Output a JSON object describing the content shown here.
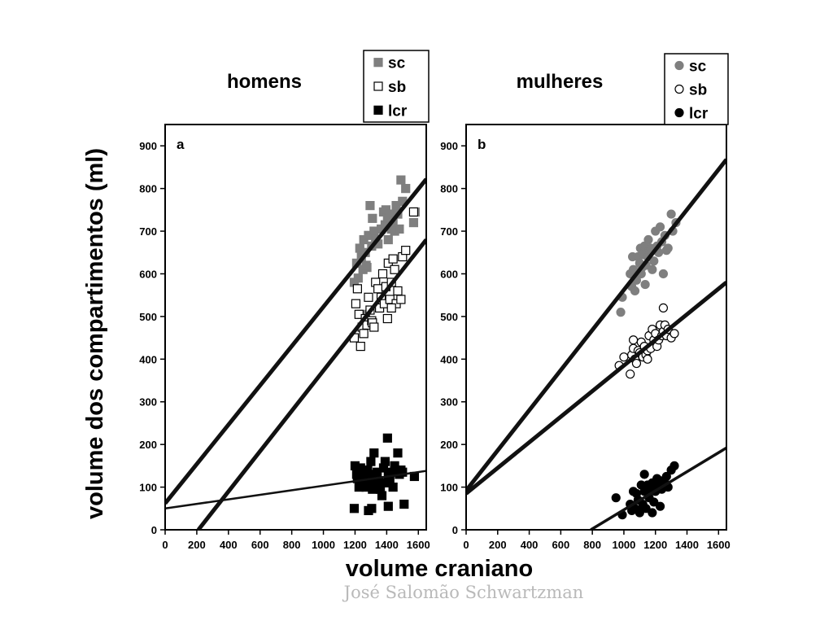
{
  "slide": {
    "ylabel": "volume dos compartimentos (ml)",
    "xlabel": "volume craniano",
    "credit": "José Salomão Schwartzman"
  },
  "chart_data": [
    {
      "type": "scatter",
      "title": "homens",
      "panel_label": "a",
      "marker": "square",
      "xlim": [
        0,
        1650
      ],
      "ylim": [
        0,
        950
      ],
      "xticks": [
        "0",
        "200",
        "400",
        "600",
        "800",
        "1000",
        "1200",
        "1400",
        "1600"
      ],
      "yticks": [
        "0",
        "100",
        "200",
        "300",
        "400",
        "500",
        "600",
        "700",
        "800",
        "900"
      ],
      "legend": {
        "placement": "top-right",
        "entries": [
          "sc",
          "sb",
          "lcr"
        ]
      },
      "series": [
        {
          "name": "sc",
          "color": "#7f7f7f",
          "fill": "gray",
          "points": [
            [
              1195,
              580
            ],
            [
              1210,
              625
            ],
            [
              1220,
              590
            ],
            [
              1230,
              660
            ],
            [
              1240,
              640
            ],
            [
              1250,
              610
            ],
            [
              1255,
              680
            ],
            [
              1265,
              650
            ],
            [
              1275,
              615
            ],
            [
              1285,
              690
            ],
            [
              1295,
              760
            ],
            [
              1305,
              665
            ],
            [
              1310,
              730
            ],
            [
              1320,
              700
            ],
            [
              1330,
              680
            ],
            [
              1345,
              670
            ],
            [
              1365,
              705
            ],
            [
              1380,
              745
            ],
            [
              1390,
              715
            ],
            [
              1395,
              750
            ],
            [
              1405,
              730
            ],
            [
              1410,
              680
            ],
            [
              1420,
              740
            ],
            [
              1430,
              705
            ],
            [
              1440,
              725
            ],
            [
              1450,
              700
            ],
            [
              1460,
              760
            ],
            [
              1470,
              740
            ],
            [
              1480,
              705
            ],
            [
              1490,
              820
            ],
            [
              1500,
              770
            ],
            [
              1520,
              800
            ],
            [
              1570,
              720
            ],
            [
              1580,
              745
            ],
            [
              1240,
              505
            ],
            [
              1270,
              620
            ]
          ]
        },
        {
          "name": "sb",
          "color": "#000000",
          "fill": "open",
          "points": [
            [
              1195,
              450
            ],
            [
              1205,
              530
            ],
            [
              1215,
              565
            ],
            [
              1225,
              505
            ],
            [
              1235,
              430
            ],
            [
              1245,
              475
            ],
            [
              1255,
              460
            ],
            [
              1265,
              495
            ],
            [
              1275,
              480
            ],
            [
              1285,
              545
            ],
            [
              1295,
              515
            ],
            [
              1305,
              490
            ],
            [
              1310,
              485
            ],
            [
              1320,
              475
            ],
            [
              1330,
              580
            ],
            [
              1345,
              565
            ],
            [
              1355,
              520
            ],
            [
              1365,
              545
            ],
            [
              1375,
              600
            ],
            [
              1385,
              530
            ],
            [
              1395,
              570
            ],
            [
              1405,
              495
            ],
            [
              1410,
              625
            ],
            [
              1420,
              540
            ],
            [
              1430,
              580
            ],
            [
              1440,
              635
            ],
            [
              1450,
              610
            ],
            [
              1460,
              530
            ],
            [
              1470,
              560
            ],
            [
              1490,
              540
            ],
            [
              1500,
              640
            ],
            [
              1520,
              655
            ],
            [
              1570,
              745
            ],
            [
              1430,
              520
            ]
          ]
        },
        {
          "name": "lcr",
          "color": "#000000",
          "fill": "solid",
          "points": [
            [
              1200,
              150
            ],
            [
              1210,
              130
            ],
            [
              1215,
              120
            ],
            [
              1225,
              100
            ],
            [
              1235,
              145
            ],
            [
              1240,
              130
            ],
            [
              1250,
              110
            ],
            [
              1260,
              125
            ],
            [
              1270,
              100
            ],
            [
              1280,
              140
            ],
            [
              1290,
              120
            ],
            [
              1300,
              160
            ],
            [
              1310,
              95
            ],
            [
              1320,
              180
            ],
            [
              1325,
              110
            ],
            [
              1330,
              130
            ],
            [
              1340,
              135
            ],
            [
              1350,
              115
            ],
            [
              1360,
              95
            ],
            [
              1370,
              80
            ],
            [
              1380,
              145
            ],
            [
              1390,
              160
            ],
            [
              1400,
              110
            ],
            [
              1410,
              130
            ],
            [
              1420,
              120
            ],
            [
              1430,
              135
            ],
            [
              1440,
              100
            ],
            [
              1450,
              150
            ],
            [
              1460,
              140
            ],
            [
              1470,
              180
            ],
            [
              1480,
              130
            ],
            [
              1490,
              140
            ],
            [
              1500,
              135
            ],
            [
              1405,
              215
            ],
            [
              1195,
              50
            ],
            [
              1285,
              45
            ],
            [
              1305,
              50
            ],
            [
              1410,
              55
            ],
            [
              1510,
              60
            ],
            [
              1575,
              125
            ]
          ]
        }
      ],
      "lines": [
        {
          "series": "sc",
          "x": [
            0,
            1650
          ],
          "y": [
            62,
            822
          ],
          "weight": "heavy"
        },
        {
          "series": "sb",
          "x": [
            210,
            1650
          ],
          "y": [
            0,
            680
          ],
          "weight": "heavy"
        },
        {
          "series": "lcr",
          "x": [
            0,
            1650
          ],
          "y": [
            50,
            138
          ],
          "weight": "light"
        }
      ]
    },
    {
      "type": "scatter",
      "title": "mulheres",
      "panel_label": "b",
      "marker": "circle",
      "xlim": [
        0,
        1650
      ],
      "ylim": [
        0,
        950
      ],
      "xticks": [
        "0",
        "200",
        "400",
        "600",
        "800",
        "1000",
        "1200",
        "1400",
        "1600"
      ],
      "yticks": [
        "0",
        "100",
        "200",
        "300",
        "400",
        "500",
        "600",
        "700",
        "800",
        "900"
      ],
      "legend": {
        "placement": "top-right",
        "entries": [
          "sc",
          "sb",
          "lcr"
        ]
      },
      "series": [
        {
          "name": "sc",
          "color": "#7f7f7f",
          "fill": "gray",
          "points": [
            [
              980,
              510
            ],
            [
              990,
              545
            ],
            [
              1040,
              600
            ],
            [
              1050,
              570
            ],
            [
              1055,
              640
            ],
            [
              1060,
              610
            ],
            [
              1070,
              560
            ],
            [
              1080,
              585
            ],
            [
              1090,
              640
            ],
            [
              1100,
              625
            ],
            [
              1105,
              660
            ],
            [
              1110,
              600
            ],
            [
              1115,
              615
            ],
            [
              1120,
              645
            ],
            [
              1125,
              650
            ],
            [
              1130,
              665
            ],
            [
              1135,
              575
            ],
            [
              1140,
              620
            ],
            [
              1150,
              640
            ],
            [
              1155,
              680
            ],
            [
              1160,
              655
            ],
            [
              1170,
              660
            ],
            [
              1180,
              610
            ],
            [
              1190,
              630
            ],
            [
              1200,
              700
            ],
            [
              1210,
              665
            ],
            [
              1220,
              650
            ],
            [
              1230,
              710
            ],
            [
              1240,
              675
            ],
            [
              1250,
              600
            ],
            [
              1260,
              690
            ],
            [
              1270,
              655
            ],
            [
              1280,
              660
            ],
            [
              1300,
              740
            ],
            [
              1310,
              700
            ],
            [
              1330,
              720
            ]
          ]
        },
        {
          "name": "sb",
          "color": "#000000",
          "fill": "open",
          "points": [
            [
              970,
              385
            ],
            [
              1000,
              405
            ],
            [
              1040,
              365
            ],
            [
              1050,
              410
            ],
            [
              1060,
              425
            ],
            [
              1070,
              400
            ],
            [
              1080,
              390
            ],
            [
              1090,
              420
            ],
            [
              1100,
              415
            ],
            [
              1110,
              440
            ],
            [
              1120,
              405
            ],
            [
              1130,
              430
            ],
            [
              1140,
              410
            ],
            [
              1150,
              420
            ],
            [
              1160,
              455
            ],
            [
              1170,
              425
            ],
            [
              1180,
              470
            ],
            [
              1190,
              445
            ],
            [
              1200,
              460
            ],
            [
              1210,
              430
            ],
            [
              1220,
              445
            ],
            [
              1230,
              480
            ],
            [
              1240,
              455
            ],
            [
              1250,
              465
            ],
            [
              1260,
              480
            ],
            [
              1270,
              455
            ],
            [
              1280,
              470
            ],
            [
              1300,
              450
            ],
            [
              1320,
              460
            ],
            [
              1250,
              520
            ],
            [
              1060,
              445
            ],
            [
              1150,
              400
            ]
          ]
        },
        {
          "name": "lcr",
          "color": "#000000",
          "fill": "solid",
          "points": [
            [
              950,
              75
            ],
            [
              990,
              35
            ],
            [
              1040,
              60
            ],
            [
              1050,
              45
            ],
            [
              1060,
              90
            ],
            [
              1070,
              50
            ],
            [
              1080,
              85
            ],
            [
              1090,
              70
            ],
            [
              1100,
              45
            ],
            [
              1110,
              105
            ],
            [
              1120,
              60
            ],
            [
              1130,
              90
            ],
            [
              1140,
              50
            ],
            [
              1150,
              105
            ],
            [
              1160,
              75
            ],
            [
              1170,
              95
            ],
            [
              1180,
              110
            ],
            [
              1190,
              65
            ],
            [
              1200,
              90
            ],
            [
              1210,
              120
            ],
            [
              1220,
              100
            ],
            [
              1230,
              115
            ],
            [
              1240,
              95
            ],
            [
              1250,
              105
            ],
            [
              1260,
              110
            ],
            [
              1270,
              125
            ],
            [
              1280,
              100
            ],
            [
              1300,
              140
            ],
            [
              1320,
              150
            ],
            [
              1130,
              130
            ],
            [
              1180,
              40
            ],
            [
              1230,
              55
            ],
            [
              1100,
              40
            ]
          ]
        }
      ],
      "lines": [
        {
          "series": "sc",
          "x": [
            0,
            1650
          ],
          "y": [
            92,
            868
          ],
          "weight": "heavy"
        },
        {
          "series": "sb",
          "x": [
            0,
            1650
          ],
          "y": [
            85,
            580
          ],
          "weight": "heavy"
        },
        {
          "series": "lcr",
          "x": [
            790,
            1650
          ],
          "y": [
            0,
            192
          ],
          "weight": "medium"
        }
      ]
    }
  ]
}
